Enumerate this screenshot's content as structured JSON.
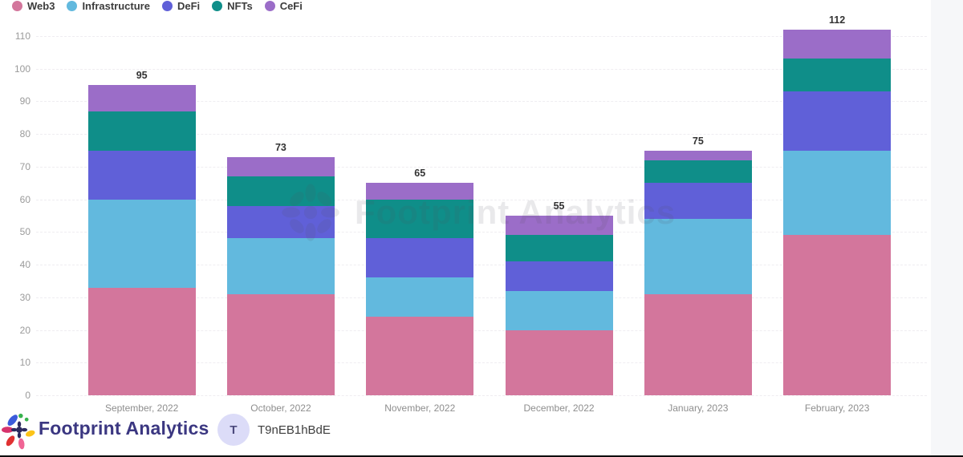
{
  "legend": {
    "items": [
      {
        "label": "Web3",
        "color": "#d3769c"
      },
      {
        "label": "Infrastructure",
        "color": "#62b9de"
      },
      {
        "label": "DeFi",
        "color": "#6060d8"
      },
      {
        "label": "NFTs",
        "color": "#0f8e89"
      },
      {
        "label": "CeFi",
        "color": "#9b6dc8"
      }
    ]
  },
  "chart_data": {
    "type": "bar",
    "stacked": true,
    "categories": [
      "September, 2022",
      "October, 2022",
      "November, 2022",
      "December, 2022",
      "January, 2023",
      "February, 2023"
    ],
    "series": [
      {
        "name": "Web3",
        "color": "#d3769c",
        "values": [
          33,
          31,
          24,
          20,
          31,
          49
        ]
      },
      {
        "name": "Infrastructure",
        "color": "#62b9de",
        "values": [
          27,
          17,
          12,
          12,
          23,
          26
        ]
      },
      {
        "name": "DeFi",
        "color": "#6060d8",
        "values": [
          15,
          10,
          12,
          9,
          11,
          18
        ]
      },
      {
        "name": "NFTs",
        "color": "#0f8e89",
        "values": [
          12,
          9,
          12,
          8,
          7,
          10
        ]
      },
      {
        "name": "CeFi",
        "color": "#9b6dc8",
        "values": [
          8,
          6,
          5,
          6,
          3,
          9
        ]
      }
    ],
    "totals": [
      95,
      73,
      65,
      55,
      75,
      112
    ],
    "title": "",
    "xlabel": "",
    "ylabel": "",
    "ylim": [
      0,
      110
    ],
    "y_ticks": [
      0,
      10,
      20,
      30,
      40,
      50,
      60,
      70,
      80,
      90,
      100,
      110
    ],
    "grid": "dashed-horizontal",
    "legend_position": "top-left"
  },
  "watermark": {
    "text": "Footprint Analytics"
  },
  "footer": {
    "brand": "Footprint Analytics",
    "avatar_initial": "T",
    "username": "T9nEB1hBdE"
  },
  "colors": {
    "background": "#ffffff",
    "gridline": "#efedf1",
    "axis_text": "#9a9a9a",
    "value_label": "#333333",
    "brand_text": "#3b3781",
    "avatar_bg": "#dcdcf8",
    "right_strip": "#f6f7f9"
  }
}
